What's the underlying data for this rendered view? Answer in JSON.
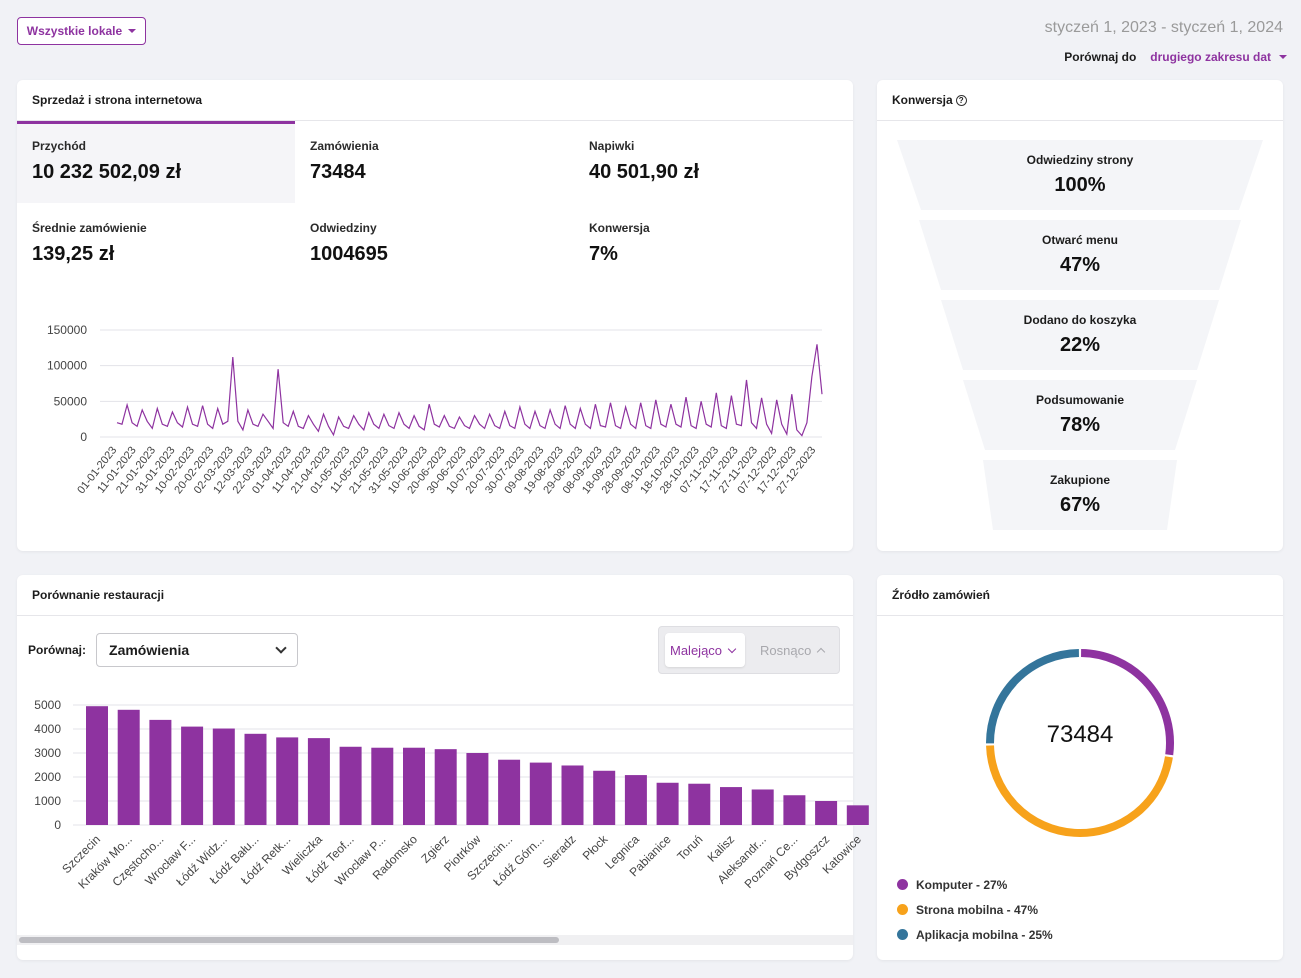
{
  "header": {
    "locations_label": "Wszystkie lokale",
    "date_range": "styczeń 1, 2023 - styczeń 1, 2024",
    "compare_label": "Porównaj do",
    "compare_value": "drugiego zakresu dat"
  },
  "colors": {
    "accent": "#8e33a0",
    "orange": "#f7a21b",
    "blue": "#34759b"
  },
  "sales": {
    "title": "Sprzedaż i strona internetowa",
    "metrics": [
      {
        "label": "Przychód",
        "value": "10 232 502,09 zł"
      },
      {
        "label": "Zamówienia",
        "value": "73484"
      },
      {
        "label": "Napiwki",
        "value": "40 501,90 zł"
      },
      {
        "label": "Średnie zamówienie",
        "value": "139,25 zł"
      },
      {
        "label": "Odwiedziny",
        "value": "1004695"
      },
      {
        "label": "Konwersja",
        "value": "7%"
      }
    ]
  },
  "conversion": {
    "title": "Konwersja",
    "help_icon": "question-circle-icon",
    "steps": [
      {
        "label": "Odwiedziny strony",
        "value": "100%"
      },
      {
        "label": "Otwarć menu",
        "value": "47%"
      },
      {
        "label": "Dodano do koszyka",
        "value": "22%"
      },
      {
        "label": "Podsumowanie",
        "value": "78%"
      },
      {
        "label": "Zakupione",
        "value": "67%"
      }
    ]
  },
  "comparison": {
    "title": "Porównanie restauracji",
    "compare_label": "Porównaj:",
    "select_value": "Zamówienia",
    "sort_desc": "Malejąco",
    "sort_asc": "Rosnąco"
  },
  "source": {
    "title": "Źródło zamówień",
    "total": "73484",
    "legend": [
      {
        "label": "Komputer - 27%",
        "color": "#8e33a0"
      },
      {
        "label": "Strona mobilna - 47%",
        "color": "#f7a21b"
      },
      {
        "label": "Aplikacja mobilna - 25%",
        "color": "#34759b"
      }
    ]
  },
  "chart_data": [
    {
      "type": "line",
      "yticks": [
        "150000",
        "100000",
        "50000",
        "0"
      ],
      "ylim": [
        0,
        150000
      ],
      "x_tick_labels": [
        "01-01-2023",
        "11-01-2023",
        "21-01-2023",
        "31-01-2023",
        "10-02-2023",
        "20-02-2023",
        "02-03-2023",
        "12-03-2023",
        "22-03-2023",
        "01-04-2023",
        "11-04-2023",
        "21-04-2023",
        "01-05-2023",
        "11-05-2023",
        "21-05-2023",
        "31-05-2023",
        "10-06-2023",
        "20-06-2023",
        "30-06-2023",
        "10-07-2023",
        "20-07-2023",
        "30-07-2023",
        "09-08-2023",
        "19-08-2023",
        "29-08-2023",
        "08-09-2023",
        "18-09-2023",
        "28-09-2023",
        "08-10-2023",
        "18-10-2023",
        "28-10-2023",
        "07-11-2023",
        "17-11-2023",
        "27-11-2023",
        "07-12-2023",
        "17-12-2023",
        "27-12-2023"
      ],
      "series": [
        {
          "values": [
            20000,
            18000,
            45000,
            20000,
            15000,
            38000,
            22000,
            12000,
            40000,
            18000,
            15000,
            35000,
            20000,
            14000,
            42000,
            18000,
            15000,
            44000,
            18000,
            12000,
            40000,
            18000,
            22000,
            112000,
            22000,
            10000,
            38000,
            18000,
            15000,
            32000,
            22000,
            12000,
            95000,
            20000,
            15000,
            36000,
            15000,
            12000,
            30000,
            18000,
            8000,
            32000,
            15000,
            3000,
            28000,
            15000,
            12000,
            30000,
            18000,
            10000,
            34000,
            18000,
            12000,
            32000,
            16000,
            12000,
            34000,
            18000,
            12000,
            30000,
            15000,
            10000,
            46000,
            18000,
            14000,
            30000,
            15000,
            12000,
            28000,
            16000,
            12000,
            30000,
            18000,
            12000,
            32000,
            16000,
            12000,
            36000,
            16000,
            12000,
            42000,
            18000,
            12000,
            36000,
            16000,
            12000,
            38000,
            18000,
            12000,
            44000,
            18000,
            12000,
            40000,
            18000,
            12000,
            46000,
            16000,
            14000,
            48000,
            16000,
            12000,
            42000,
            18000,
            12000,
            48000,
            16000,
            12000,
            52000,
            18000,
            14000,
            46000,
            18000,
            14000,
            56000,
            16000,
            12000,
            50000,
            18000,
            14000,
            62000,
            16000,
            12000,
            58000,
            18000,
            16000,
            80000,
            20000,
            12000,
            55000,
            18000,
            5000,
            52000,
            18000,
            4000,
            60000,
            10000,
            2000,
            20000,
            85000,
            130000,
            60000
          ]
        }
      ]
    },
    {
      "type": "bar",
      "yticks": [
        "5000",
        "4000",
        "3000",
        "2000",
        "1000",
        "0"
      ],
      "ylim": [
        0,
        5000
      ],
      "categories": [
        "Szczecin",
        "Kraków Mo...",
        "Częstocho...",
        "Wrocław F...",
        "Łódź Widz...",
        "Łódź Bału...",
        "Łódź Retk...",
        "Wieliczka",
        "Łódź Teof...",
        "Wrocław P...",
        "Radomsko",
        "Zgierz",
        "Piotrków",
        "Szczecin...",
        "Łódź Górn...",
        "Sieradz",
        "Płock",
        "Legnica",
        "Pabianice",
        "Toruń",
        "Kalisz",
        "Aleksandr...",
        "Poznań Ce...",
        "Bydgoszcz",
        "Katowice"
      ],
      "values": [
        4950,
        4800,
        4380,
        4100,
        4020,
        3800,
        3650,
        3620,
        3260,
        3220,
        3220,
        3160,
        3000,
        2720,
        2600,
        2480,
        2260,
        2080,
        1760,
        1720,
        1580,
        1480,
        1240,
        1000,
        820
      ]
    },
    {
      "type": "pie",
      "categories": [
        "Komputer",
        "Strona mobilna",
        "Aplikacja mobilna"
      ],
      "values": [
        27,
        47,
        25
      ]
    }
  ]
}
